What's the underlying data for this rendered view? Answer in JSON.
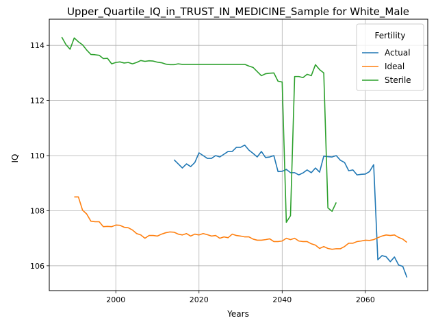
{
  "chart_data": {
    "type": "line",
    "title": "Upper_Quartile_IQ_in_TRUST_IN_MEDICINE_Sample for White_Male",
    "xlabel": "Years",
    "ylabel": "IQ",
    "xlim": [
      1984,
      2075
    ],
    "ylim": [
      105.1,
      114.95
    ],
    "x_ticks": [
      2000,
      2020,
      2040,
      2060
    ],
    "y_ticks": [
      106,
      108,
      110,
      112,
      114
    ],
    "grid": true,
    "legend": {
      "title": "Fertility",
      "position": "top-right"
    },
    "series": [
      {
        "name": "Actual",
        "color": "#1f77b4",
        "x": [
          2014,
          2015,
          2016,
          2017,
          2018,
          2019,
          2020,
          2021,
          2022,
          2023,
          2024,
          2025,
          2026,
          2027,
          2028,
          2029,
          2030,
          2031,
          2032,
          2033,
          2034,
          2035,
          2036,
          2037,
          2038,
          2039,
          2040,
          2041,
          2042,
          2043,
          2044,
          2045,
          2046,
          2047,
          2048,
          2049,
          2050,
          2051,
          2052,
          2053,
          2054,
          2055,
          2056,
          2057,
          2058,
          2059,
          2060,
          2061,
          2062,
          2063,
          2064,
          2065,
          2066,
          2067,
          2068,
          2069,
          2070
        ],
        "y": [
          109.85,
          109.7,
          109.55,
          109.7,
          109.6,
          109.75,
          110.1,
          110.0,
          109.9,
          109.9,
          110.0,
          109.95,
          110.05,
          110.15,
          110.15,
          110.3,
          110.3,
          110.38,
          110.2,
          110.08,
          109.95,
          110.15,
          109.93,
          109.95,
          110.0,
          109.42,
          109.43,
          109.5,
          109.38,
          109.38,
          109.3,
          109.37,
          109.48,
          109.38,
          109.55,
          109.4,
          109.98,
          109.96,
          109.95,
          110.0,
          109.83,
          109.75,
          109.45,
          109.48,
          109.3,
          109.32,
          109.33,
          109.42,
          109.67,
          106.22,
          106.37,
          106.33,
          106.15,
          106.32,
          106.03,
          105.98,
          105.58
        ]
      },
      {
        "name": "Ideal",
        "color": "#ff7f0e",
        "x": [
          1990,
          1991,
          1992,
          1993,
          1994,
          1995,
          1996,
          1997,
          1998,
          1999,
          2000,
          2001,
          2002,
          2003,
          2004,
          2005,
          2006,
          2007,
          2008,
          2009,
          2010,
          2011,
          2012,
          2013,
          2014,
          2015,
          2016,
          2017,
          2018,
          2019,
          2020,
          2021,
          2022,
          2023,
          2024,
          2025,
          2026,
          2027,
          2028,
          2029,
          2030,
          2031,
          2032,
          2033,
          2034,
          2035,
          2036,
          2037,
          2038,
          2039,
          2040,
          2041,
          2042,
          2043,
          2044,
          2045,
          2046,
          2047,
          2048,
          2049,
          2050,
          2051,
          2052,
          2053,
          2054,
          2055,
          2056,
          2057,
          2058,
          2059,
          2060,
          2061,
          2062,
          2063,
          2064,
          2065,
          2066,
          2067,
          2068,
          2069,
          2070
        ],
        "y": [
          108.5,
          108.5,
          108.02,
          107.88,
          107.62,
          107.6,
          107.6,
          107.42,
          107.43,
          107.42,
          107.48,
          107.47,
          107.4,
          107.38,
          107.3,
          107.17,
          107.12,
          107.0,
          107.1,
          107.1,
          107.08,
          107.15,
          107.2,
          107.23,
          107.22,
          107.15,
          107.12,
          107.17,
          107.08,
          107.15,
          107.12,
          107.17,
          107.13,
          107.08,
          107.1,
          107.0,
          107.05,
          107.02,
          107.15,
          107.1,
          107.08,
          107.05,
          107.05,
          106.97,
          106.93,
          106.93,
          106.95,
          106.98,
          106.88,
          106.88,
          106.9,
          107.0,
          106.95,
          107.0,
          106.9,
          106.88,
          106.88,
          106.8,
          106.75,
          106.63,
          106.7,
          106.63,
          106.6,
          106.62,
          106.62,
          106.7,
          106.82,
          106.82,
          106.88,
          106.9,
          106.93,
          106.92,
          106.95,
          107.02,
          107.08,
          107.12,
          107.1,
          107.12,
          107.03,
          106.97,
          106.85
        ]
      },
      {
        "name": "Sterile",
        "color": "#2ca02c",
        "x": [
          1987,
          1988,
          1989,
          1990,
          1991,
          1992,
          1993,
          1994,
          1995,
          1996,
          1997,
          1998,
          1999,
          2000,
          2001,
          2002,
          2003,
          2004,
          2005,
          2006,
          2007,
          2008,
          2009,
          2010,
          2011,
          2012,
          2013,
          2014,
          2015,
          2016,
          2017,
          2018,
          2019,
          2020,
          2021,
          2022,
          2023,
          2024,
          2025,
          2026,
          2027,
          2028,
          2029,
          2030,
          2031,
          2032,
          2033,
          2034,
          2035,
          2036,
          2037,
          2038,
          2039,
          2040,
          2041,
          2042,
          2043,
          2044,
          2045,
          2046,
          2047,
          2048,
          2049,
          2050,
          2051,
          2052,
          2053
        ],
        "y": [
          114.3,
          114.03,
          113.86,
          114.27,
          114.13,
          114.02,
          113.83,
          113.67,
          113.66,
          113.64,
          113.52,
          113.53,
          113.33,
          113.38,
          113.4,
          113.36,
          113.38,
          113.33,
          113.38,
          113.45,
          113.42,
          113.44,
          113.43,
          113.39,
          113.37,
          113.32,
          113.3,
          113.3,
          113.33,
          113.31,
          113.31,
          113.31,
          113.31,
          113.31,
          113.31,
          113.31,
          113.31,
          113.31,
          113.31,
          113.31,
          113.31,
          113.31,
          113.31,
          113.31,
          113.31,
          113.25,
          113.2,
          113.05,
          112.9,
          112.97,
          112.99,
          113.0,
          112.7,
          112.67,
          107.58,
          107.82,
          112.87,
          112.87,
          112.83,
          112.95,
          112.9,
          113.3,
          113.12,
          113.0,
          108.1,
          107.98,
          108.3
        ]
      }
    ]
  }
}
